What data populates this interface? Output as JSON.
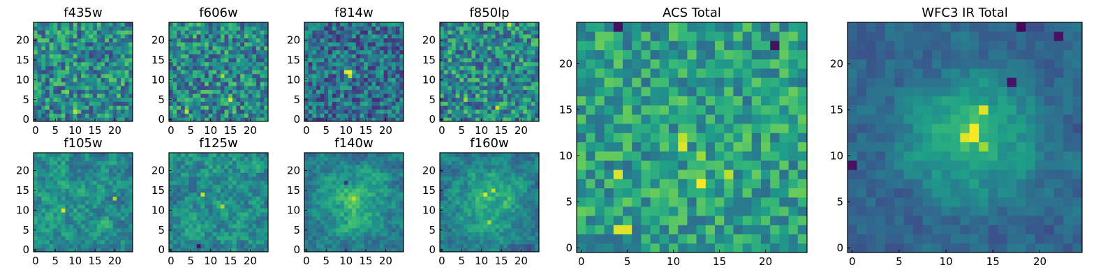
{
  "chart_data": [
    {
      "type": "heatmap",
      "title": "f435w",
      "grid_size": 25,
      "xlim": [
        0,
        24
      ],
      "ylim": [
        0,
        24
      ],
      "xticks": [
        0,
        5,
        10,
        15,
        20
      ],
      "yticks": [
        0,
        5,
        10,
        15,
        20
      ],
      "colormap": "viridis",
      "pattern": "noise",
      "seed": 11,
      "hotspots": [
        {
          "x": 10,
          "y": 2,
          "v": 0.9
        },
        {
          "x": 8,
          "y": 7,
          "v": 0.8
        }
      ]
    },
    {
      "type": "heatmap",
      "title": "f606w",
      "grid_size": 25,
      "xlim": [
        0,
        24
      ],
      "ylim": [
        0,
        24
      ],
      "xticks": [
        0,
        5,
        10,
        15,
        20
      ],
      "yticks": [
        0,
        5,
        10,
        15,
        20
      ],
      "colormap": "viridis",
      "pattern": "noise",
      "seed": 23,
      "hotspots": [
        {
          "x": 15,
          "y": 5,
          "v": 0.95
        },
        {
          "x": 4,
          "y": 2,
          "v": 0.9
        },
        {
          "x": 13,
          "y": 11,
          "v": 0.85
        }
      ]
    },
    {
      "type": "heatmap",
      "title": "f814w",
      "grid_size": 25,
      "xlim": [
        0,
        24
      ],
      "ylim": [
        0,
        24
      ],
      "xticks": [
        0,
        5,
        10,
        15,
        20
      ],
      "yticks": [
        0,
        5,
        10,
        15,
        20
      ],
      "colormap": "viridis",
      "pattern": "noise-dark",
      "seed": 37,
      "hotspots": [
        {
          "x": 11,
          "y": 12,
          "v": 1.0
        },
        {
          "x": 10,
          "y": 12,
          "v": 0.95
        },
        {
          "x": 11,
          "y": 11,
          "v": 0.9
        }
      ]
    },
    {
      "type": "heatmap",
      "title": "f850lp",
      "grid_size": 25,
      "xlim": [
        0,
        24
      ],
      "ylim": [
        0,
        24
      ],
      "xticks": [
        0,
        5,
        10,
        15,
        20
      ],
      "yticks": [
        0,
        5,
        10,
        15,
        20
      ],
      "colormap": "viridis",
      "pattern": "noise",
      "seed": 41,
      "hotspots": [
        {
          "x": 14,
          "y": 3,
          "v": 0.9
        },
        {
          "x": 6,
          "y": 5,
          "v": 0.85
        },
        {
          "x": 17,
          "y": 24,
          "v": 0.9
        }
      ]
    },
    {
      "type": "heatmap",
      "title": "f105w",
      "grid_size": 25,
      "xlim": [
        0,
        24
      ],
      "ylim": [
        0,
        24
      ],
      "xticks": [
        0,
        5,
        10,
        15,
        20
      ],
      "yticks": [
        0,
        5,
        10,
        15,
        20
      ],
      "colormap": "viridis",
      "pattern": "smooth",
      "seed": 53,
      "hotspots": [
        {
          "x": 7,
          "y": 10,
          "v": 0.95
        },
        {
          "x": 20,
          "y": 13,
          "v": 0.85
        }
      ]
    },
    {
      "type": "heatmap",
      "title": "f125w",
      "grid_size": 25,
      "xlim": [
        0,
        24
      ],
      "ylim": [
        0,
        24
      ],
      "xticks": [
        0,
        5,
        10,
        15,
        20
      ],
      "yticks": [
        0,
        5,
        10,
        15,
        20
      ],
      "colormap": "viridis",
      "pattern": "smooth",
      "seed": 67,
      "hotspots": [
        {
          "x": 8,
          "y": 14,
          "v": 0.9
        },
        {
          "x": 13,
          "y": 11,
          "v": 0.85
        },
        {
          "x": 7,
          "y": 1,
          "v": 0.05
        }
      ]
    },
    {
      "type": "heatmap",
      "title": "f140w",
      "grid_size": 25,
      "xlim": [
        0,
        24
      ],
      "ylim": [
        0,
        24
      ],
      "xticks": [
        0,
        5,
        10,
        15,
        20
      ],
      "yticks": [
        0,
        5,
        10,
        15,
        20
      ],
      "colormap": "viridis",
      "pattern": "center",
      "seed": 71,
      "hotspots": [
        {
          "x": 12,
          "y": 13,
          "v": 0.9
        },
        {
          "x": 10,
          "y": 17,
          "v": 0.15
        }
      ]
    },
    {
      "type": "heatmap",
      "title": "f160w",
      "grid_size": 25,
      "xlim": [
        0,
        24
      ],
      "ylim": [
        0,
        24
      ],
      "xticks": [
        0,
        5,
        10,
        15,
        20
      ],
      "yticks": [
        0,
        5,
        10,
        15,
        20
      ],
      "colormap": "viridis",
      "pattern": "center",
      "seed": 83,
      "hotspots": [
        {
          "x": 11,
          "y": 14,
          "v": 0.95
        },
        {
          "x": 13,
          "y": 15,
          "v": 0.9
        },
        {
          "x": 12,
          "y": 7,
          "v": 0.85
        }
      ]
    },
    {
      "type": "heatmap",
      "title": "ACS Total",
      "grid_size": 25,
      "xlim": [
        0,
        24
      ],
      "ylim": [
        0,
        24
      ],
      "xticks": [
        0,
        5,
        10,
        15,
        20
      ],
      "yticks": [
        0,
        5,
        10,
        15,
        20
      ],
      "colormap": "viridis",
      "pattern": "noise-bright",
      "seed": 97,
      "hotspots": [
        {
          "x": 4,
          "y": 2,
          "v": 0.95
        },
        {
          "x": 5,
          "y": 2,
          "v": 0.95
        },
        {
          "x": 4,
          "y": 8,
          "v": 0.95
        },
        {
          "x": 13,
          "y": 7,
          "v": 1.0
        },
        {
          "x": 16,
          "y": 8,
          "v": 0.9
        },
        {
          "x": 11,
          "y": 11,
          "v": 0.95
        },
        {
          "x": 11,
          "y": 12,
          "v": 0.9
        },
        {
          "x": 13,
          "y": 10,
          "v": 0.85
        },
        {
          "x": 21,
          "y": 22,
          "v": 0.05
        },
        {
          "x": 4,
          "y": 24,
          "v": 0.05
        }
      ]
    },
    {
      "type": "heatmap",
      "title": "WFC3 IR Total",
      "grid_size": 25,
      "xlim": [
        0,
        24
      ],
      "ylim": [
        0,
        24
      ],
      "xticks": [
        0,
        5,
        10,
        15,
        20
      ],
      "yticks": [
        0,
        5,
        10,
        15,
        20
      ],
      "colormap": "viridis",
      "pattern": "center-strong",
      "seed": 109,
      "hotspots": [
        {
          "x": 13,
          "y": 13,
          "v": 1.0
        },
        {
          "x": 13,
          "y": 12,
          "v": 1.0
        },
        {
          "x": 12,
          "y": 12,
          "v": 0.95
        },
        {
          "x": 14,
          "y": 15,
          "v": 0.95
        },
        {
          "x": 14,
          "y": 11,
          "v": 0.85
        },
        {
          "x": 17,
          "y": 18,
          "v": 0.05
        },
        {
          "x": 0,
          "y": 9,
          "v": 0.05
        },
        {
          "x": 18,
          "y": 24,
          "v": 0.02
        },
        {
          "x": 22,
          "y": 23,
          "v": 0.05
        }
      ]
    }
  ]
}
